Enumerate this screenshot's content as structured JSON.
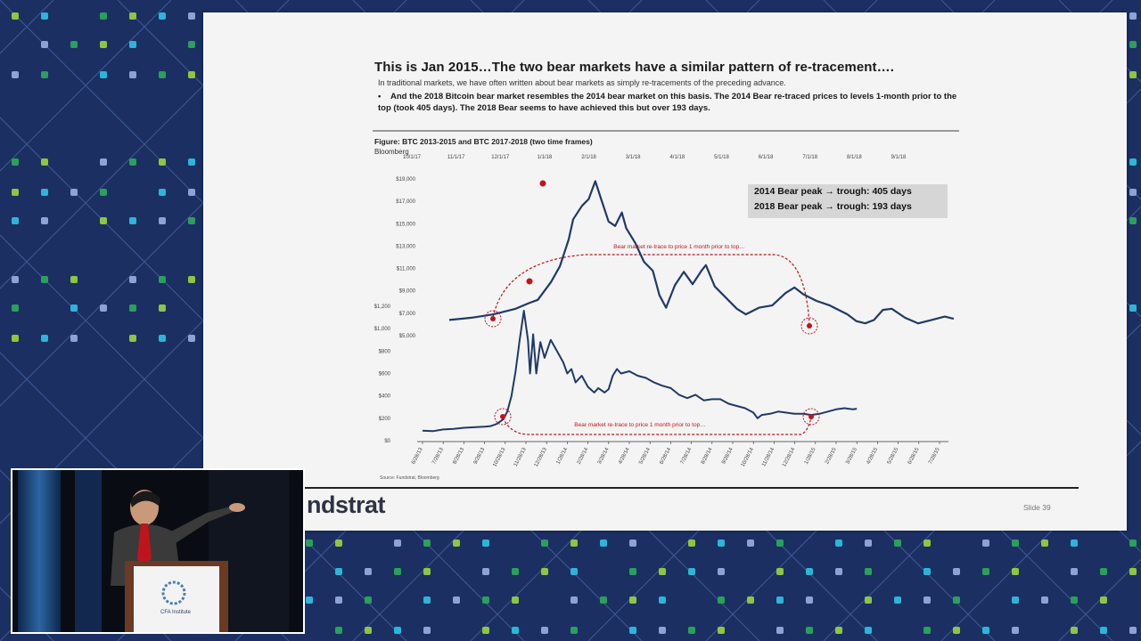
{
  "slide": {
    "title": "This is Jan 2015…The two bear markets have a similar pattern of re-tracement….",
    "subtitle": "In traditional markets, we have often written about bear markets as simply re-tracements of the preceding advance.",
    "bullet": "And the 2018 Bitcoin bear market resembles the 2014 bear market on this basis.  The 2014 Bear re-traced prices to levels 1-month prior to the top (took 405 days). The 2018 Bear seems to have achieved this but over 193 days.",
    "bullet_marker": "•",
    "figure_caption": "Figure: BTC 2013-2015 and BTC 2017-2018 (two time frames)",
    "figure_source_name": "Bloomberg",
    "source_note": "Source: Fundstrat, Bloomberg",
    "logo_text": "ndstrat",
    "slide_number": "Slide  39"
  },
  "legend": {
    "line1": "2014 Bear peak → trough:  405 days",
    "line2": "2018 Bear peak → trough:  193 days"
  },
  "podium": {
    "text": "CFA Institute"
  },
  "colors": {
    "series": "#1f3a68",
    "annotation": "#c0141c",
    "background": "#1b2f63"
  },
  "chart_data": {
    "type": "line",
    "title": "Figure: BTC 2013-2015 and BTC 2017-2018 (two time frames)",
    "top_x_axis": {
      "label": "",
      "ticks": [
        "10/1/17",
        "11/1/17",
        "12/1/17",
        "1/1/18",
        "2/1/18",
        "3/1/18",
        "4/1/18",
        "5/1/18",
        "6/1/18",
        "7/1/18",
        "8/1/18",
        "9/1/18"
      ]
    },
    "bottom_x_axis": {
      "label": "",
      "ticks": [
        "6/28/13",
        "7/28/13",
        "8/28/13",
        "9/28/13",
        "10/28/13",
        "11/28/13",
        "12/28/13",
        "1/28/14",
        "2/28/14",
        "3/28/14",
        "4/28/14",
        "5/28/14",
        "6/28/14",
        "7/28/14",
        "8/28/14",
        "9/28/14",
        "10/28/14",
        "11/28/14",
        "12/28/14",
        "1/28/15",
        "2/28/15",
        "3/28/15",
        "4/28/15",
        "5/28/15",
        "6/28/15",
        "7/28/15"
      ]
    },
    "upper_y_axis": {
      "ticks": [
        "$19,000",
        "$17,000",
        "$15,000",
        "$13,000",
        "$11,000",
        "$9,000",
        "$7,000",
        "$5,000"
      ],
      "range": [
        5000,
        19000
      ]
    },
    "lower_y_axis": {
      "ticks": [
        "$1,200",
        "$1,000",
        "$800",
        "$600",
        "$400",
        "$200",
        "$0"
      ],
      "range": [
        0,
        1200
      ]
    },
    "series": [
      {
        "style": "solid",
        "x_labels_ref": "top_x_axis",
        "points": [
          [
            0.0,
            6400
          ],
          [
            0.5,
            6600
          ],
          [
            1.0,
            6900
          ],
          [
            1.5,
            7400
          ],
          [
            1.8,
            7900
          ],
          [
            2.0,
            8200
          ],
          [
            2.3,
            9800
          ],
          [
            2.5,
            11200
          ],
          [
            2.7,
            13600
          ],
          [
            2.8,
            15400
          ],
          [
            3.0,
            16600
          ],
          [
            3.15,
            17200
          ],
          [
            3.3,
            18800
          ],
          [
            3.45,
            17000
          ],
          [
            3.6,
            15200
          ],
          [
            3.75,
            14800
          ],
          [
            3.9,
            16000
          ],
          [
            4.0,
            14600
          ],
          [
            4.2,
            13300
          ],
          [
            4.4,
            11600
          ],
          [
            4.6,
            10800
          ],
          [
            4.75,
            8600
          ],
          [
            4.9,
            7500
          ],
          [
            5.1,
            9500
          ],
          [
            5.3,
            10700
          ],
          [
            5.5,
            9600
          ],
          [
            5.7,
            10800
          ],
          [
            5.8,
            11300
          ],
          [
            6.0,
            9400
          ],
          [
            6.3,
            8200
          ],
          [
            6.5,
            7400
          ],
          [
            6.7,
            6900
          ],
          [
            7.0,
            7500
          ],
          [
            7.3,
            7700
          ],
          [
            7.6,
            8800
          ],
          [
            7.8,
            9300
          ],
          [
            8.0,
            8700
          ],
          [
            8.3,
            8100
          ],
          [
            8.6,
            7700
          ],
          [
            8.8,
            7300
          ],
          [
            9.0,
            6900
          ],
          [
            9.2,
            6300
          ],
          [
            9.4,
            6100
          ],
          [
            9.6,
            6400
          ],
          [
            9.8,
            7300
          ],
          [
            10.0,
            7400
          ],
          [
            10.3,
            6600
          ],
          [
            10.6,
            6100
          ],
          [
            10.9,
            6400
          ],
          [
            11.2,
            6700
          ],
          [
            11.4,
            6500
          ]
        ]
      },
      {
        "style": "solid",
        "x_labels_ref": "bottom_x_axis",
        "points": [
          [
            0.0,
            90
          ],
          [
            0.5,
            85
          ],
          [
            1.0,
            100
          ],
          [
            1.5,
            105
          ],
          [
            2.0,
            115
          ],
          [
            2.5,
            120
          ],
          [
            3.0,
            125
          ],
          [
            3.3,
            130
          ],
          [
            3.6,
            150
          ],
          [
            3.9,
            190
          ],
          [
            4.1,
            260
          ],
          [
            4.3,
            400
          ],
          [
            4.5,
            620
          ],
          [
            4.7,
            900
          ],
          [
            4.9,
            1160
          ],
          [
            5.1,
            900
          ],
          [
            5.2,
            600
          ],
          [
            5.35,
            950
          ],
          [
            5.5,
            600
          ],
          [
            5.7,
            880
          ],
          [
            5.9,
            740
          ],
          [
            6.2,
            900
          ],
          [
            6.5,
            800
          ],
          [
            6.8,
            700
          ],
          [
            7.0,
            600
          ],
          [
            7.2,
            640
          ],
          [
            7.4,
            520
          ],
          [
            7.7,
            580
          ],
          [
            8.0,
            480
          ],
          [
            8.3,
            430
          ],
          [
            8.5,
            470
          ],
          [
            8.8,
            430
          ],
          [
            9.0,
            460
          ],
          [
            9.2,
            580
          ],
          [
            9.4,
            640
          ],
          [
            9.6,
            600
          ],
          [
            10.0,
            620
          ],
          [
            10.4,
            580
          ],
          [
            10.8,
            560
          ],
          [
            11.2,
            520
          ],
          [
            11.6,
            490
          ],
          [
            12.0,
            470
          ],
          [
            12.4,
            410
          ],
          [
            12.8,
            380
          ],
          [
            13.2,
            410
          ],
          [
            13.6,
            360
          ],
          [
            14.0,
            370
          ],
          [
            14.4,
            370
          ],
          [
            14.8,
            330
          ],
          [
            15.2,
            310
          ],
          [
            15.6,
            290
          ],
          [
            16.0,
            250
          ],
          [
            16.2,
            200
          ],
          [
            16.4,
            230
          ],
          [
            16.8,
            240
          ],
          [
            17.2,
            260
          ],
          [
            17.6,
            250
          ],
          [
            18.0,
            240
          ],
          [
            18.4,
            240
          ],
          [
            18.8,
            230
          ],
          [
            19.2,
            240
          ],
          [
            19.6,
            260
          ],
          [
            20.0,
            280
          ],
          [
            20.4,
            290
          ],
          [
            20.8,
            280
          ],
          [
            21.0,
            285
          ]
        ]
      }
    ],
    "annotations": [
      {
        "text": "Bear market re-trace to price 1 month prior to top…",
        "series_index": 0
      },
      {
        "text": "Bear market re-trace to price 1 month prior to top…",
        "series_index": 1
      }
    ],
    "grid": false,
    "legend_position": "top-right"
  }
}
